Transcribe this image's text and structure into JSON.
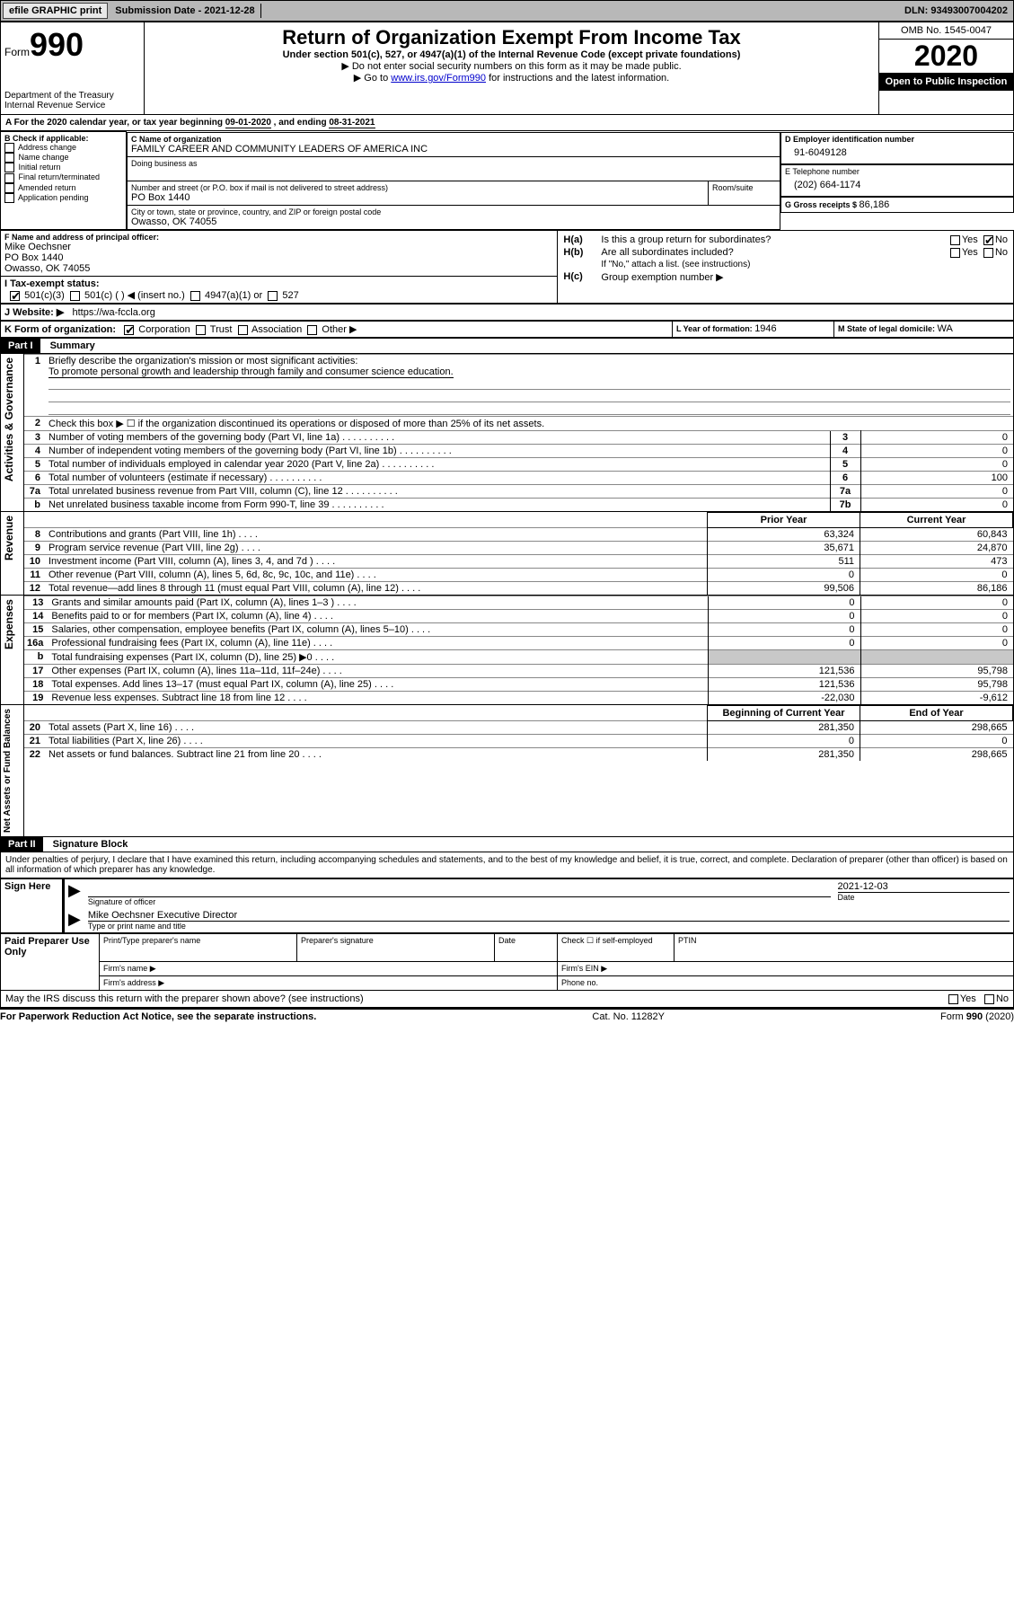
{
  "topbar": {
    "efile": "efile GRAPHIC print",
    "submission_label": "Submission Date - ",
    "submission_date": "2021-12-28",
    "dln_label": "DLN: ",
    "dln": "93493007004202"
  },
  "header": {
    "form_word": "Form",
    "form_number": "990",
    "dept": "Department of the Treasury\nInternal Revenue Service",
    "title": "Return of Organization Exempt From Income Tax",
    "subtitle": "Under section 501(c), 527, or 4947(a)(1) of the Internal Revenue Code (except private foundations)",
    "instr1": "▶ Do not enter social security numbers on this form as it may be made public.",
    "instr2_pre": "▶ Go to ",
    "instr2_link": "www.irs.gov/Form990",
    "instr2_post": " for instructions and the latest information.",
    "omb": "OMB No. 1545-0047",
    "year": "2020",
    "public": "Open to Public Inspection"
  },
  "period": {
    "line_a": "For the 2020 calendar year, or tax year beginning ",
    "begin": "09-01-2020",
    "mid": " , and ending ",
    "end": "08-31-2021"
  },
  "boxB": {
    "title": "B Check if applicable:",
    "items": [
      "Address change",
      "Name change",
      "Initial return",
      "Final return/terminated",
      "Amended return",
      "Application pending"
    ]
  },
  "boxC": {
    "label_name": "C Name of organization",
    "org_name": "FAMILY CAREER AND COMMUNITY LEADERS OF AMERICA INC",
    "dba_label": "Doing business as",
    "addr_label": "Number and street (or P.O. box if mail is not delivered to street address)",
    "room_label": "Room/suite",
    "addr": "PO Box 1440",
    "city_label": "City or town, state or province, country, and ZIP or foreign postal code",
    "city": "Owasso, OK  74055"
  },
  "boxD": {
    "label": "D Employer identification number",
    "ein": "91-6049128"
  },
  "boxE": {
    "label": "E Telephone number",
    "phone": "(202) 664-1174"
  },
  "boxG": {
    "label": "G Gross receipts $ ",
    "amount": "86,186"
  },
  "boxF": {
    "label": "F  Name and address of principal officer:",
    "name": "Mike Oechsner",
    "addr1": "PO Box 1440",
    "addr2": "Owasso, OK  74055"
  },
  "boxH": {
    "a": "Is this a group return for subordinates?",
    "b": "Are all subordinates included?",
    "b_note": "If \"No,\" attach a list. (see instructions)",
    "c": "Group exemption number ▶",
    "yes": "Yes",
    "no": "No",
    "ha_label": "H(a)",
    "hb_label": "H(b)",
    "hc_label": "H(c)"
  },
  "boxI": {
    "label": "I  Tax-exempt status:",
    "opts": [
      "501(c)(3)",
      "501(c) (   ) ◀ (insert no.)",
      "4947(a)(1) or",
      "527"
    ]
  },
  "boxJ": {
    "label": "J  Website: ▶",
    "url": "https://wa-fccla.org"
  },
  "boxK": {
    "label": "K Form of organization:",
    "opts": [
      "Corporation",
      "Trust",
      "Association",
      "Other ▶"
    ]
  },
  "boxL": {
    "label": "L Year of formation: ",
    "val": "1946"
  },
  "boxM": {
    "label": "M State of legal domicile: ",
    "val": "WA"
  },
  "parts": {
    "p1_label": "Part I",
    "p1_title": "Summary",
    "p2_label": "Part II",
    "p2_title": "Signature Block"
  },
  "summary": {
    "side_ag": "Activities & Governance",
    "side_rev": "Revenue",
    "side_exp": "Expenses",
    "side_na": "Net Assets or Fund Balances",
    "q1_label": "1",
    "q1_text": "Briefly describe the organization's mission or most significant activities:",
    "q1_answer": "To promote personal growth and leadership through family and consumer science education.",
    "q2_label": "2",
    "q2_text": "Check this box ▶ ☐  if the organization discontinued its operations or disposed of more than 25% of its net assets.",
    "lines_ag": [
      {
        "n": "3",
        "t": "Number of voting members of the governing body (Part VI, line 1a)",
        "box": "3",
        "v": "0"
      },
      {
        "n": "4",
        "t": "Number of independent voting members of the governing body (Part VI, line 1b)",
        "box": "4",
        "v": "0"
      },
      {
        "n": "5",
        "t": "Total number of individuals employed in calendar year 2020 (Part V, line 2a)",
        "box": "5",
        "v": "0"
      },
      {
        "n": "6",
        "t": "Total number of volunteers (estimate if necessary)",
        "box": "6",
        "v": "100"
      },
      {
        "n": "7a",
        "t": "Total unrelated business revenue from Part VIII, column (C), line 12",
        "box": "7a",
        "v": "0"
      },
      {
        "n": "b",
        "t": "Net unrelated business taxable income from Form 990-T, line 39",
        "box": "7b",
        "v": "0"
      }
    ],
    "col_prior": "Prior Year",
    "col_current": "Current Year",
    "col_begin": "Beginning of Current Year",
    "col_end": "End of Year",
    "lines_rev": [
      {
        "n": "8",
        "t": "Contributions and grants (Part VIII, line 1h)",
        "p": "63,324",
        "c": "60,843"
      },
      {
        "n": "9",
        "t": "Program service revenue (Part VIII, line 2g)",
        "p": "35,671",
        "c": "24,870"
      },
      {
        "n": "10",
        "t": "Investment income (Part VIII, column (A), lines 3, 4, and 7d )",
        "p": "511",
        "c": "473"
      },
      {
        "n": "11",
        "t": "Other revenue (Part VIII, column (A), lines 5, 6d, 8c, 9c, 10c, and 11e)",
        "p": "0",
        "c": "0"
      },
      {
        "n": "12",
        "t": "Total revenue—add lines 8 through 11 (must equal Part VIII, column (A), line 12)",
        "p": "99,506",
        "c": "86,186"
      }
    ],
    "lines_exp": [
      {
        "n": "13",
        "t": "Grants and similar amounts paid (Part IX, column (A), lines 1–3 )",
        "p": "0",
        "c": "0"
      },
      {
        "n": "14",
        "t": "Benefits paid to or for members (Part IX, column (A), line 4)",
        "p": "0",
        "c": "0"
      },
      {
        "n": "15",
        "t": "Salaries, other compensation, employee benefits (Part IX, column (A), lines 5–10)",
        "p": "0",
        "c": "0"
      },
      {
        "n": "16a",
        "t": "Professional fundraising fees (Part IX, column (A), line 11e)",
        "p": "0",
        "c": "0"
      },
      {
        "n": "b",
        "t": "Total fundraising expenses (Part IX, column (D), line 25) ▶0",
        "p": "",
        "c": "",
        "grey": true
      },
      {
        "n": "17",
        "t": "Other expenses (Part IX, column (A), lines 11a–11d, 11f–24e)",
        "p": "121,536",
        "c": "95,798"
      },
      {
        "n": "18",
        "t": "Total expenses. Add lines 13–17 (must equal Part IX, column (A), line 25)",
        "p": "121,536",
        "c": "95,798"
      },
      {
        "n": "19",
        "t": "Revenue less expenses. Subtract line 18 from line 12",
        "p": "-22,030",
        "c": "-9,612"
      }
    ],
    "lines_na": [
      {
        "n": "20",
        "t": "Total assets (Part X, line 16)",
        "p": "281,350",
        "c": "298,665"
      },
      {
        "n": "21",
        "t": "Total liabilities (Part X, line 26)",
        "p": "0",
        "c": "0"
      },
      {
        "n": "22",
        "t": "Net assets or fund balances. Subtract line 21 from line 20",
        "p": "281,350",
        "c": "298,665"
      }
    ]
  },
  "sig": {
    "perjury": "Under penalties of perjury, I declare that I have examined this return, including accompanying schedules and statements, and to the best of my knowledge and belief, it is true, correct, and complete. Declaration of preparer (other than officer) is based on all information of which preparer has any knowledge.",
    "sign_here": "Sign Here",
    "sig_officer": "Signature of officer",
    "date_label": "Date",
    "sig_date": "2021-12-03",
    "typed": "Mike Oechsner  Executive Director",
    "typed_label": "Type or print name and title",
    "paid_title": "Paid Preparer Use Only",
    "pp_name": "Print/Type preparer's name",
    "pp_sig": "Preparer's signature",
    "pp_date": "Date",
    "pp_check": "Check ☐ if self-employed",
    "pp_ptin": "PTIN",
    "firm_name": "Firm's name    ▶",
    "firm_ein": "Firm's EIN ▶",
    "firm_addr": "Firm's address ▶",
    "firm_phone": "Phone no.",
    "may_irs": "May the IRS discuss this return with the preparer shown above? (see instructions)",
    "yes": "Yes",
    "no": "No"
  },
  "footer": {
    "left": "For Paperwork Reduction Act Notice, see the separate instructions.",
    "mid": "Cat. No. 11282Y",
    "right": "Form 990 (2020)"
  }
}
